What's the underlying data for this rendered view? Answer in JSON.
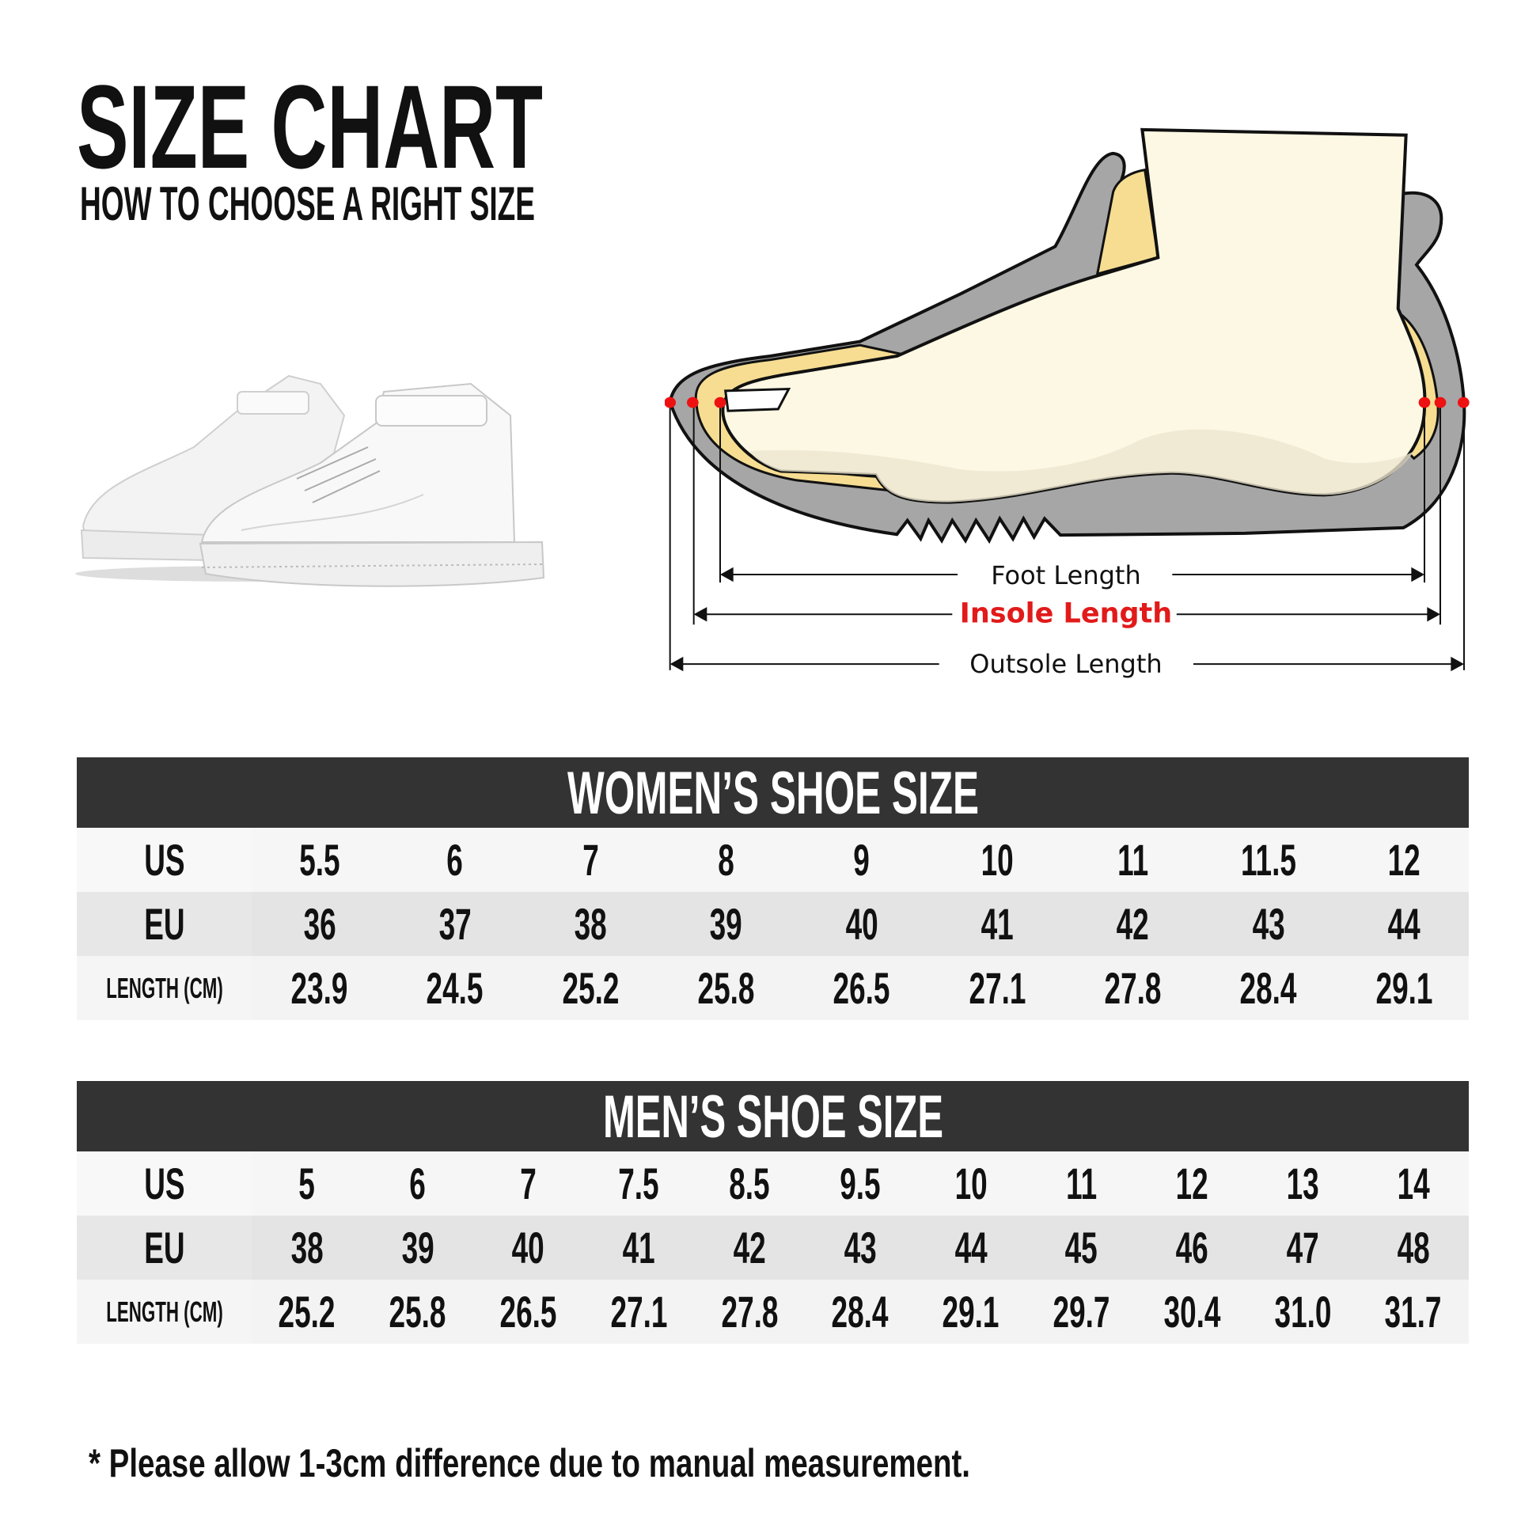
{
  "header": {
    "title": "SIZE CHART",
    "subtitle": "HOW TO CHOOSE A RIGHT SIZE"
  },
  "diagram": {
    "foot_length": "Foot Length",
    "insole_length": "Insole Length",
    "outsole_length": "Outsole Length",
    "colors": {
      "sole": "#a6a6a6",
      "lining": "#f6dd92",
      "foot": "#fdf8e4",
      "marker": "#ee1111",
      "insole_text": "#e21a1a"
    }
  },
  "women": {
    "title": "WOMEN’S SHOE SIZE",
    "row_labels": [
      "US",
      "EU",
      "LENGTH (CM)"
    ],
    "us": [
      "5.5",
      "6",
      "7",
      "8",
      "9",
      "10",
      "11",
      "11.5",
      "12"
    ],
    "eu": [
      "36",
      "37",
      "38",
      "39",
      "40",
      "41",
      "42",
      "43",
      "44"
    ],
    "length_cm": [
      "23.9",
      "24.5",
      "25.2",
      "25.8",
      "26.5",
      "27.1",
      "27.8",
      "28.4",
      "29.1"
    ]
  },
  "men": {
    "title": "MEN’S SHOE SIZE",
    "row_labels": [
      "US",
      "EU",
      "LENGTH (CM)"
    ],
    "us": [
      "5",
      "6",
      "7",
      "7.5",
      "8.5",
      "9.5",
      "10",
      "11",
      "12",
      "13",
      "14"
    ],
    "eu": [
      "38",
      "39",
      "40",
      "41",
      "42",
      "43",
      "44",
      "45",
      "46",
      "47",
      "48"
    ],
    "length_cm": [
      "25.2",
      "25.8",
      "26.5",
      "27.1",
      "27.8",
      "28.4",
      "29.1",
      "29.7",
      "30.4",
      "31.0",
      "31.7"
    ]
  },
  "footnote": "* Please allow 1-3cm difference due to manual measurement."
}
